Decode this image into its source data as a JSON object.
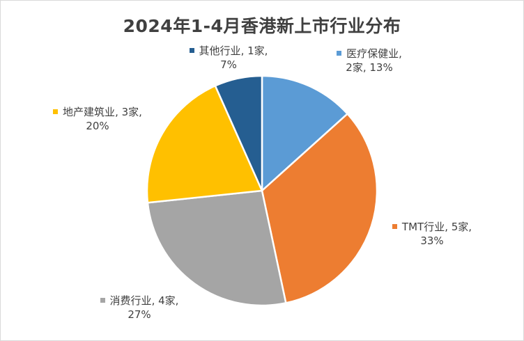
{
  "chart_data": {
    "type": "pie",
    "title": "2024年1-4月香港新上市行业分布",
    "start_angle_deg": 0,
    "direction": "clockwise",
    "border_color": "#ffffff",
    "slices": [
      {
        "name": "医疗保健业",
        "count_label": "2家",
        "percent_label": "13%",
        "value": 2,
        "color": "#5b9bd5"
      },
      {
        "name": "TMT行业",
        "count_label": "5家",
        "percent_label": "33%",
        "value": 5,
        "color": "#ed7d31"
      },
      {
        "name": "消费行业",
        "count_label": "4家",
        "percent_label": "27%",
        "value": 4,
        "color": "#a5a5a5"
      },
      {
        "name": "地产建筑业",
        "count_label": "3家",
        "percent_label": "20%",
        "value": 3,
        "color": "#ffc000"
      },
      {
        "name": "其他行业",
        "count_label": "1家",
        "percent_label": "7%",
        "value": 1,
        "color": "#255e91"
      }
    ]
  }
}
